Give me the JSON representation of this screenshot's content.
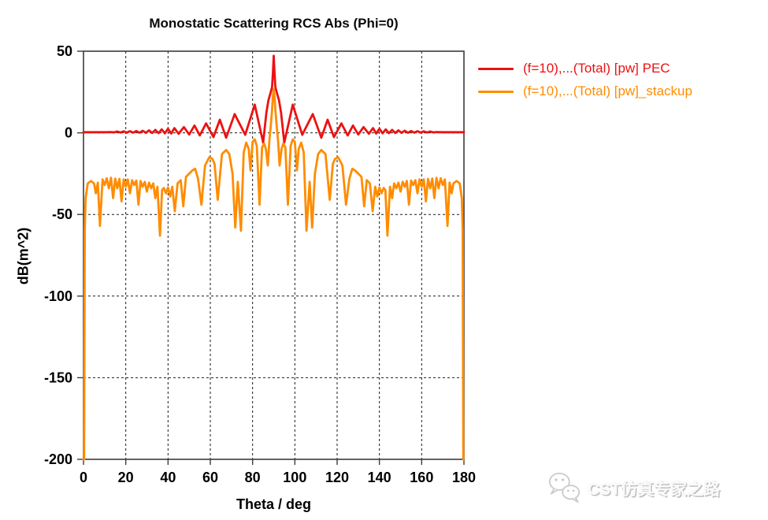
{
  "title": "Monostatic Scattering RCS Abs (Phi=0)",
  "watermark": {
    "text": "CST仿真专家之路",
    "icon": "wechat-logo"
  },
  "chart_data": {
    "type": "line",
    "title": "Monostatic Scattering RCS Abs (Phi=0)",
    "xlabel": "Theta / deg",
    "ylabel": "dB(m^2)",
    "xlim": [
      0,
      180
    ],
    "ylim": [
      -200,
      50
    ],
    "x_ticks": [
      0,
      20,
      40,
      60,
      80,
      100,
      120,
      140,
      160,
      180
    ],
    "y_ticks": [
      50,
      0,
      -50,
      -100,
      -150,
      -200
    ],
    "grid": true,
    "grid_style": "dashed",
    "legend_position": "top-right",
    "series": [
      {
        "name": "(f=10),...(Total) [pw] PEC",
        "color": "#ed1111",
        "width": 2.8,
        "points": [
          [
            0,
            0.4
          ],
          [
            6,
            0.4
          ],
          [
            10,
            0.4
          ],
          [
            13,
            0.5
          ],
          [
            14.5,
            0.3
          ],
          [
            16,
            0.8
          ],
          [
            17.5,
            0.2
          ],
          [
            19,
            0.9
          ],
          [
            20.5,
            0.15
          ],
          [
            22,
            1.0
          ],
          [
            23.5,
            0.1
          ],
          [
            25,
            1.1
          ],
          [
            26.5,
            0.05
          ],
          [
            28,
            1.3
          ],
          [
            29.5,
            0
          ],
          [
            31,
            1.5
          ],
          [
            32.5,
            -0.1
          ],
          [
            34,
            1.8
          ],
          [
            35.5,
            -0.2
          ],
          [
            37,
            2.1
          ],
          [
            38.5,
            -0.3
          ],
          [
            40,
            2.5
          ],
          [
            41.5,
            -0.45
          ],
          [
            43,
            2.9
          ],
          [
            45,
            -0.6
          ],
          [
            47.5,
            3.5
          ],
          [
            50,
            -1.0
          ],
          [
            52.5,
            4.5
          ],
          [
            55,
            -1.6
          ],
          [
            58,
            5.8
          ],
          [
            61.5,
            -2.6
          ],
          [
            64.5,
            8.0
          ],
          [
            67.5,
            -3.0
          ],
          [
            71.5,
            11.5
          ],
          [
            76.5,
            -1.2
          ],
          [
            81,
            17.3
          ],
          [
            85,
            -6
          ],
          [
            86.5,
            12
          ],
          [
            87.5,
            20
          ],
          [
            88.5,
            24.5
          ],
          [
            89.2,
            28
          ],
          [
            89.6,
            36
          ],
          [
            90,
            47.2
          ],
          [
            90.4,
            36
          ],
          [
            90.8,
            28
          ],
          [
            91.5,
            24.5
          ],
          [
            92.5,
            20
          ],
          [
            93.5,
            12
          ],
          [
            95,
            -6
          ],
          [
            99,
            17.3
          ],
          [
            103.5,
            -1.2
          ],
          [
            108.5,
            11.5
          ],
          [
            112.5,
            -3.0
          ],
          [
            115.5,
            8.0
          ],
          [
            118.5,
            -2.6
          ],
          [
            122,
            5.8
          ],
          [
            125,
            -1.6
          ],
          [
            127.5,
            4.5
          ],
          [
            130,
            -1.0
          ],
          [
            132.5,
            3.5
          ],
          [
            135,
            -0.6
          ],
          [
            137,
            2.9
          ],
          [
            138.5,
            -0.45
          ],
          [
            140,
            2.5
          ],
          [
            141.5,
            -0.3
          ],
          [
            143,
            2.1
          ],
          [
            144.5,
            -0.2
          ],
          [
            146,
            1.8
          ],
          [
            147.5,
            -0.1
          ],
          [
            149,
            1.5
          ],
          [
            150.5,
            0
          ],
          [
            152,
            1.3
          ],
          [
            153.5,
            0.05
          ],
          [
            155,
            1.1
          ],
          [
            156.5,
            0.1
          ],
          [
            158,
            1.0
          ],
          [
            159.5,
            0.15
          ],
          [
            161,
            0.9
          ],
          [
            162.5,
            0.2
          ],
          [
            164,
            0.8
          ],
          [
            165.5,
            0.3
          ],
          [
            167,
            0.5
          ],
          [
            170,
            0.4
          ],
          [
            174,
            0.4
          ],
          [
            180,
            0.4
          ]
        ]
      },
      {
        "name": "(f=10),...(Total) [pw]_stackup",
        "color": "#ff8c00",
        "width": 2.8,
        "points": [
          [
            0,
            -200
          ],
          [
            0.3,
            -200
          ],
          [
            0.6,
            -60
          ],
          [
            1,
            -40
          ],
          [
            2,
            -31
          ],
          [
            3.5,
            -29.5
          ],
          [
            5,
            -31
          ],
          [
            5.8,
            -37
          ],
          [
            6.8,
            -30.5
          ],
          [
            7.8,
            -57
          ],
          [
            9,
            -28.5
          ],
          [
            10,
            -32
          ],
          [
            11,
            -27.8
          ],
          [
            12,
            -34
          ],
          [
            13,
            -27.5
          ],
          [
            14,
            -40
          ],
          [
            15,
            -28
          ],
          [
            16,
            -34
          ],
          [
            17,
            -28.2
          ],
          [
            18,
            -42
          ],
          [
            19,
            -28.5
          ],
          [
            20,
            -33
          ],
          [
            21,
            -28.5
          ],
          [
            22,
            -37
          ],
          [
            23,
            -29
          ],
          [
            24,
            -32
          ],
          [
            25,
            -29.2
          ],
          [
            26,
            -44
          ],
          [
            27,
            -29.5
          ],
          [
            28,
            -33
          ],
          [
            29,
            -30
          ],
          [
            30,
            -36
          ],
          [
            31,
            -30.5
          ],
          [
            32,
            -34
          ],
          [
            33,
            -31
          ],
          [
            34,
            -40
          ],
          [
            35,
            -33
          ],
          [
            36.2,
            -63
          ],
          [
            37.2,
            -35
          ],
          [
            38,
            -33.8
          ],
          [
            39,
            -37
          ],
          [
            40,
            -33.5
          ],
          [
            41,
            -39
          ],
          [
            42,
            -33
          ],
          [
            43.2,
            -48
          ],
          [
            44.5,
            -31
          ],
          [
            46,
            -29
          ],
          [
            47.2,
            -45
          ],
          [
            48.5,
            -27
          ],
          [
            50,
            -25
          ],
          [
            51.5,
            -23
          ],
          [
            52.8,
            -22
          ],
          [
            54.2,
            -28
          ],
          [
            55.8,
            -44
          ],
          [
            57.5,
            -20
          ],
          [
            59.5,
            -15
          ],
          [
            61,
            -16
          ],
          [
            62,
            -19
          ],
          [
            63.5,
            -41
          ],
          [
            65.5,
            -13
          ],
          [
            67.5,
            -10.5
          ],
          [
            69,
            -13
          ],
          [
            70.5,
            -25
          ],
          [
            71.8,
            -58
          ],
          [
            73,
            -30
          ],
          [
            74.5,
            -60
          ],
          [
            75.8,
            -12
          ],
          [
            77,
            -6
          ],
          [
            78.2,
            -10
          ],
          [
            79,
            -23
          ],
          [
            80,
            -5.5
          ],
          [
            81,
            -4
          ],
          [
            82,
            -8
          ],
          [
            83.3,
            -44
          ],
          [
            84.5,
            -9
          ],
          [
            85.5,
            -6.5
          ],
          [
            86.3,
            -10
          ],
          [
            87.2,
            -20
          ],
          [
            88,
            -4
          ],
          [
            88.6,
            4
          ],
          [
            89.2,
            14
          ],
          [
            89.6,
            22
          ],
          [
            90,
            26.7
          ],
          [
            90.4,
            22
          ],
          [
            90.8,
            14
          ],
          [
            91.4,
            4
          ],
          [
            92,
            -4
          ],
          [
            92.8,
            -20
          ],
          [
            93.7,
            -10
          ],
          [
            94.5,
            -6.5
          ],
          [
            95.5,
            -9
          ],
          [
            96.7,
            -44
          ],
          [
            98,
            -8
          ],
          [
            99,
            -4
          ],
          [
            100,
            -5.5
          ],
          [
            101,
            -23
          ],
          [
            101.8,
            -10
          ],
          [
            103,
            -6
          ],
          [
            104.2,
            -12
          ],
          [
            105.5,
            -60
          ],
          [
            107,
            -30
          ],
          [
            108.2,
            -58
          ],
          [
            109.5,
            -25
          ],
          [
            111,
            -13
          ],
          [
            112.5,
            -10.5
          ],
          [
            114.5,
            -13
          ],
          [
            116.5,
            -41
          ],
          [
            118,
            -19
          ],
          [
            119,
            -16
          ],
          [
            120.5,
            -15
          ],
          [
            122.5,
            -20
          ],
          [
            124.2,
            -44
          ],
          [
            125.8,
            -28
          ],
          [
            127.2,
            -22
          ],
          [
            128.5,
            -23
          ],
          [
            130,
            -25
          ],
          [
            131.5,
            -27
          ],
          [
            132.8,
            -45
          ],
          [
            134,
            -29
          ],
          [
            135.5,
            -31
          ],
          [
            136.8,
            -48
          ],
          [
            138,
            -33
          ],
          [
            139,
            -39
          ],
          [
            140,
            -33.5
          ],
          [
            141,
            -37
          ],
          [
            142,
            -33.8
          ],
          [
            142.8,
            -35
          ],
          [
            143.8,
            -63
          ],
          [
            145,
            -33
          ],
          [
            146,
            -40
          ],
          [
            147,
            -31
          ],
          [
            148,
            -34
          ],
          [
            149,
            -30.5
          ],
          [
            150,
            -36
          ],
          [
            151,
            -30
          ],
          [
            152,
            -33
          ],
          [
            153,
            -29.5
          ],
          [
            154,
            -44
          ],
          [
            155,
            -29.2
          ],
          [
            156,
            -32
          ],
          [
            157,
            -29
          ],
          [
            158,
            -37
          ],
          [
            159,
            -28.5
          ],
          [
            160,
            -33
          ],
          [
            161,
            -28.5
          ],
          [
            162,
            -42
          ],
          [
            163,
            -28.2
          ],
          [
            164,
            -34
          ],
          [
            165,
            -28
          ],
          [
            166,
            -40
          ],
          [
            167,
            -27.5
          ],
          [
            168,
            -34
          ],
          [
            169,
            -27.8
          ],
          [
            170,
            -32
          ],
          [
            171,
            -28.5
          ],
          [
            172.2,
            -57
          ],
          [
            173.2,
            -30.5
          ],
          [
            174.2,
            -37
          ],
          [
            175,
            -31
          ],
          [
            176.5,
            -29.5
          ],
          [
            178,
            -31
          ],
          [
            179,
            -40
          ],
          [
            179.4,
            -60
          ],
          [
            179.7,
            -200
          ],
          [
            180,
            -200
          ]
        ]
      }
    ]
  }
}
